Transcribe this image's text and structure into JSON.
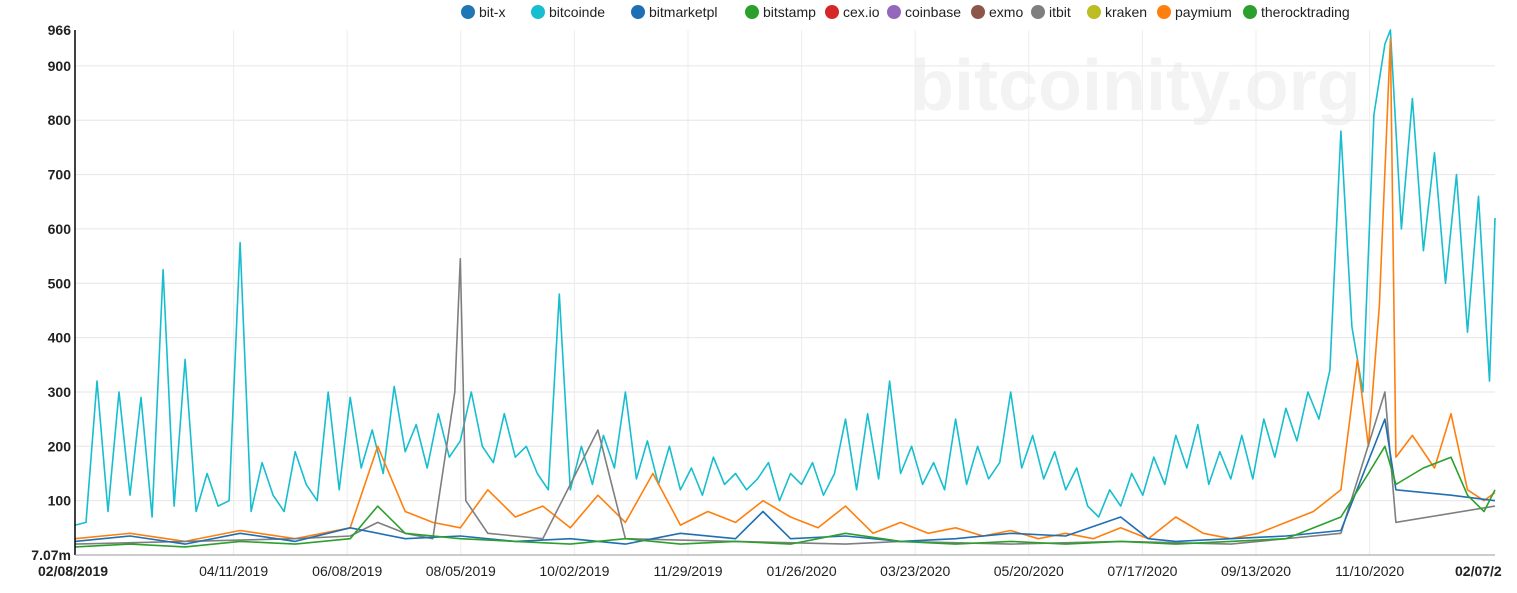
{
  "chart_data": {
    "type": "line",
    "watermark": "bitcoinity.org",
    "x_start_label": "02/08/2019",
    "x_end_label": "02/07/2",
    "x_tick_labels": [
      "04/11/2019",
      "06/08/2019",
      "08/05/2019",
      "10/02/2019",
      "11/29/2019",
      "01/26/2020",
      "03/23/2020",
      "05/20/2020",
      "07/17/2020",
      "09/13/2020",
      "11/10/2020"
    ],
    "y_min_label": "7.07m",
    "y_max_label": "966",
    "y_tick_labels": [
      "900",
      "800",
      "700",
      "600",
      "500",
      "400",
      "300",
      "200",
      "100"
    ],
    "ylim": [
      0.00707,
      966
    ],
    "grid": true,
    "legend_position": "top-right",
    "legend": [
      {
        "name": "bit-x",
        "color": "#1f77b4"
      },
      {
        "name": "bitcoinde",
        "color": "#17becf"
      },
      {
        "name": "bitmarketpl",
        "color": "#1f6fb4"
      },
      {
        "name": "bitstamp",
        "color": "#2ca02c"
      },
      {
        "name": "cex.io",
        "color": "#d62728"
      },
      {
        "name": "coinbase",
        "color": "#9467bd"
      },
      {
        "name": "exmo",
        "color": "#8c564b"
      },
      {
        "name": "itbit",
        "color": "#7f7f7f"
      },
      {
        "name": "kraken",
        "color": "#bcbd22"
      },
      {
        "name": "paymium",
        "color": "#ff7f0e"
      },
      {
        "name": "therocktrading",
        "color": "#2ca02c"
      }
    ],
    "series": [
      {
        "name": "bitcoinde",
        "color": "#17becf",
        "points": [
          [
            0,
            55
          ],
          [
            4,
            60
          ],
          [
            8,
            320
          ],
          [
            12,
            80
          ],
          [
            16,
            300
          ],
          [
            20,
            110
          ],
          [
            24,
            290
          ],
          [
            28,
            70
          ],
          [
            32,
            525
          ],
          [
            36,
            90
          ],
          [
            40,
            360
          ],
          [
            44,
            80
          ],
          [
            48,
            150
          ],
          [
            52,
            90
          ],
          [
            56,
            100
          ],
          [
            60,
            575
          ],
          [
            64,
            80
          ],
          [
            68,
            170
          ],
          [
            72,
            110
          ],
          [
            76,
            80
          ],
          [
            80,
            190
          ],
          [
            84,
            130
          ],
          [
            88,
            100
          ],
          [
            92,
            300
          ],
          [
            96,
            120
          ],
          [
            100,
            290
          ],
          [
            104,
            160
          ],
          [
            108,
            230
          ],
          [
            112,
            150
          ],
          [
            116,
            310
          ],
          [
            120,
            190
          ],
          [
            124,
            240
          ],
          [
            128,
            160
          ],
          [
            132,
            260
          ],
          [
            136,
            180
          ],
          [
            140,
            210
          ],
          [
            144,
            300
          ],
          [
            148,
            200
          ],
          [
            152,
            170
          ],
          [
            156,
            260
          ],
          [
            160,
            180
          ],
          [
            164,
            200
          ],
          [
            168,
            150
          ],
          [
            172,
            120
          ],
          [
            176,
            480
          ],
          [
            180,
            120
          ],
          [
            184,
            200
          ],
          [
            188,
            130
          ],
          [
            192,
            220
          ],
          [
            196,
            160
          ],
          [
            200,
            300
          ],
          [
            204,
            140
          ],
          [
            208,
            210
          ],
          [
            212,
            130
          ],
          [
            216,
            200
          ],
          [
            220,
            120
          ],
          [
            224,
            160
          ],
          [
            228,
            110
          ],
          [
            232,
            180
          ],
          [
            236,
            130
          ],
          [
            240,
            150
          ],
          [
            244,
            120
          ],
          [
            248,
            140
          ],
          [
            252,
            170
          ],
          [
            256,
            100
          ],
          [
            260,
            150
          ],
          [
            264,
            130
          ],
          [
            268,
            170
          ],
          [
            272,
            110
          ],
          [
            276,
            150
          ],
          [
            280,
            250
          ],
          [
            284,
            120
          ],
          [
            288,
            260
          ],
          [
            292,
            140
          ],
          [
            296,
            320
          ],
          [
            300,
            150
          ],
          [
            304,
            200
          ],
          [
            308,
            130
          ],
          [
            312,
            170
          ],
          [
            316,
            120
          ],
          [
            320,
            250
          ],
          [
            324,
            130
          ],
          [
            328,
            200
          ],
          [
            332,
            140
          ],
          [
            336,
            170
          ],
          [
            340,
            300
          ],
          [
            344,
            160
          ],
          [
            348,
            220
          ],
          [
            352,
            140
          ],
          [
            356,
            190
          ],
          [
            360,
            120
          ],
          [
            364,
            160
          ],
          [
            368,
            90
          ],
          [
            372,
            70
          ],
          [
            376,
            120
          ],
          [
            380,
            90
          ],
          [
            384,
            150
          ],
          [
            388,
            110
          ],
          [
            392,
            180
          ],
          [
            396,
            130
          ],
          [
            400,
            220
          ],
          [
            404,
            160
          ],
          [
            408,
            240
          ],
          [
            412,
            130
          ],
          [
            416,
            190
          ],
          [
            420,
            140
          ],
          [
            424,
            220
          ],
          [
            428,
            140
          ],
          [
            432,
            250
          ],
          [
            436,
            180
          ],
          [
            440,
            270
          ],
          [
            444,
            210
          ],
          [
            448,
            300
          ],
          [
            452,
            250
          ],
          [
            456,
            340
          ],
          [
            460,
            780
          ],
          [
            464,
            420
          ],
          [
            468,
            300
          ],
          [
            472,
            810
          ],
          [
            476,
            940
          ],
          [
            478,
            966
          ],
          [
            482,
            600
          ],
          [
            486,
            840
          ],
          [
            490,
            560
          ],
          [
            494,
            740
          ],
          [
            498,
            500
          ],
          [
            502,
            700
          ],
          [
            506,
            410
          ],
          [
            510,
            660
          ],
          [
            514,
            320
          ],
          [
            516,
            620
          ]
        ]
      },
      {
        "name": "paymium",
        "color": "#ff7f0e",
        "points": [
          [
            0,
            30
          ],
          [
            20,
            40
          ],
          [
            40,
            25
          ],
          [
            60,
            45
          ],
          [
            80,
            30
          ],
          [
            100,
            50
          ],
          [
            110,
            200
          ],
          [
            120,
            80
          ],
          [
            130,
            60
          ],
          [
            140,
            50
          ],
          [
            150,
            120
          ],
          [
            160,
            70
          ],
          [
            170,
            90
          ],
          [
            180,
            50
          ],
          [
            190,
            110
          ],
          [
            200,
            60
          ],
          [
            210,
            150
          ],
          [
            220,
            55
          ],
          [
            230,
            80
          ],
          [
            240,
            60
          ],
          [
            250,
            100
          ],
          [
            260,
            70
          ],
          [
            270,
            50
          ],
          [
            280,
            90
          ],
          [
            290,
            40
          ],
          [
            300,
            60
          ],
          [
            310,
            40
          ],
          [
            320,
            50
          ],
          [
            330,
            35
          ],
          [
            340,
            45
          ],
          [
            350,
            30
          ],
          [
            360,
            40
          ],
          [
            370,
            30
          ],
          [
            380,
            50
          ],
          [
            390,
            30
          ],
          [
            400,
            70
          ],
          [
            410,
            40
          ],
          [
            420,
            30
          ],
          [
            430,
            40
          ],
          [
            440,
            60
          ],
          [
            450,
            80
          ],
          [
            460,
            120
          ],
          [
            466,
            360
          ],
          [
            470,
            200
          ],
          [
            474,
            460
          ],
          [
            478,
            950
          ],
          [
            480,
            180
          ],
          [
            486,
            220
          ],
          [
            494,
            160
          ],
          [
            500,
            260
          ],
          [
            506,
            120
          ],
          [
            512,
            100
          ],
          [
            516,
            115
          ]
        ]
      },
      {
        "name": "itbit",
        "color": "#7f7f7f",
        "points": [
          [
            0,
            20
          ],
          [
            40,
            25
          ],
          [
            80,
            30
          ],
          [
            100,
            35
          ],
          [
            110,
            60
          ],
          [
            120,
            40
          ],
          [
            130,
            30
          ],
          [
            138,
            300
          ],
          [
            140,
            545
          ],
          [
            142,
            100
          ],
          [
            150,
            40
          ],
          [
            170,
            30
          ],
          [
            190,
            230
          ],
          [
            200,
            30
          ],
          [
            240,
            25
          ],
          [
            280,
            20
          ],
          [
            300,
            25
          ],
          [
            340,
            20
          ],
          [
            380,
            25
          ],
          [
            420,
            20
          ],
          [
            460,
            40
          ],
          [
            476,
            300
          ],
          [
            480,
            60
          ],
          [
            516,
            90
          ]
        ]
      },
      {
        "name": "bitmarketpl",
        "color": "#1f6fb4",
        "points": [
          [
            0,
            25
          ],
          [
            20,
            35
          ],
          [
            40,
            20
          ],
          [
            60,
            40
          ],
          [
            80,
            25
          ],
          [
            100,
            50
          ],
          [
            120,
            30
          ],
          [
            140,
            35
          ],
          [
            160,
            25
          ],
          [
            180,
            30
          ],
          [
            200,
            20
          ],
          [
            220,
            40
          ],
          [
            240,
            30
          ],
          [
            250,
            80
          ],
          [
            260,
            30
          ],
          [
            280,
            35
          ],
          [
            300,
            25
          ],
          [
            320,
            30
          ],
          [
            340,
            40
          ],
          [
            360,
            35
          ],
          [
            380,
            70
          ],
          [
            390,
            30
          ],
          [
            400,
            25
          ],
          [
            420,
            30
          ],
          [
            440,
            35
          ],
          [
            460,
            45
          ],
          [
            476,
            250
          ],
          [
            480,
            120
          ],
          [
            500,
            110
          ],
          [
            516,
            100
          ]
        ]
      },
      {
        "name": "therocktrading",
        "color": "#2ca02c",
        "points": [
          [
            0,
            15
          ],
          [
            20,
            20
          ],
          [
            40,
            15
          ],
          [
            60,
            25
          ],
          [
            80,
            20
          ],
          [
            100,
            30
          ],
          [
            110,
            90
          ],
          [
            120,
            40
          ],
          [
            140,
            30
          ],
          [
            160,
            25
          ],
          [
            180,
            20
          ],
          [
            200,
            30
          ],
          [
            220,
            20
          ],
          [
            240,
            25
          ],
          [
            260,
            20
          ],
          [
            280,
            40
          ],
          [
            300,
            25
          ],
          [
            320,
            20
          ],
          [
            340,
            25
          ],
          [
            360,
            20
          ],
          [
            380,
            25
          ],
          [
            400,
            20
          ],
          [
            420,
            25
          ],
          [
            440,
            30
          ],
          [
            460,
            70
          ],
          [
            470,
            150
          ],
          [
            476,
            200
          ],
          [
            480,
            130
          ],
          [
            490,
            160
          ],
          [
            500,
            180
          ],
          [
            506,
            110
          ],
          [
            512,
            80
          ],
          [
            516,
            120
          ]
        ]
      }
    ]
  }
}
